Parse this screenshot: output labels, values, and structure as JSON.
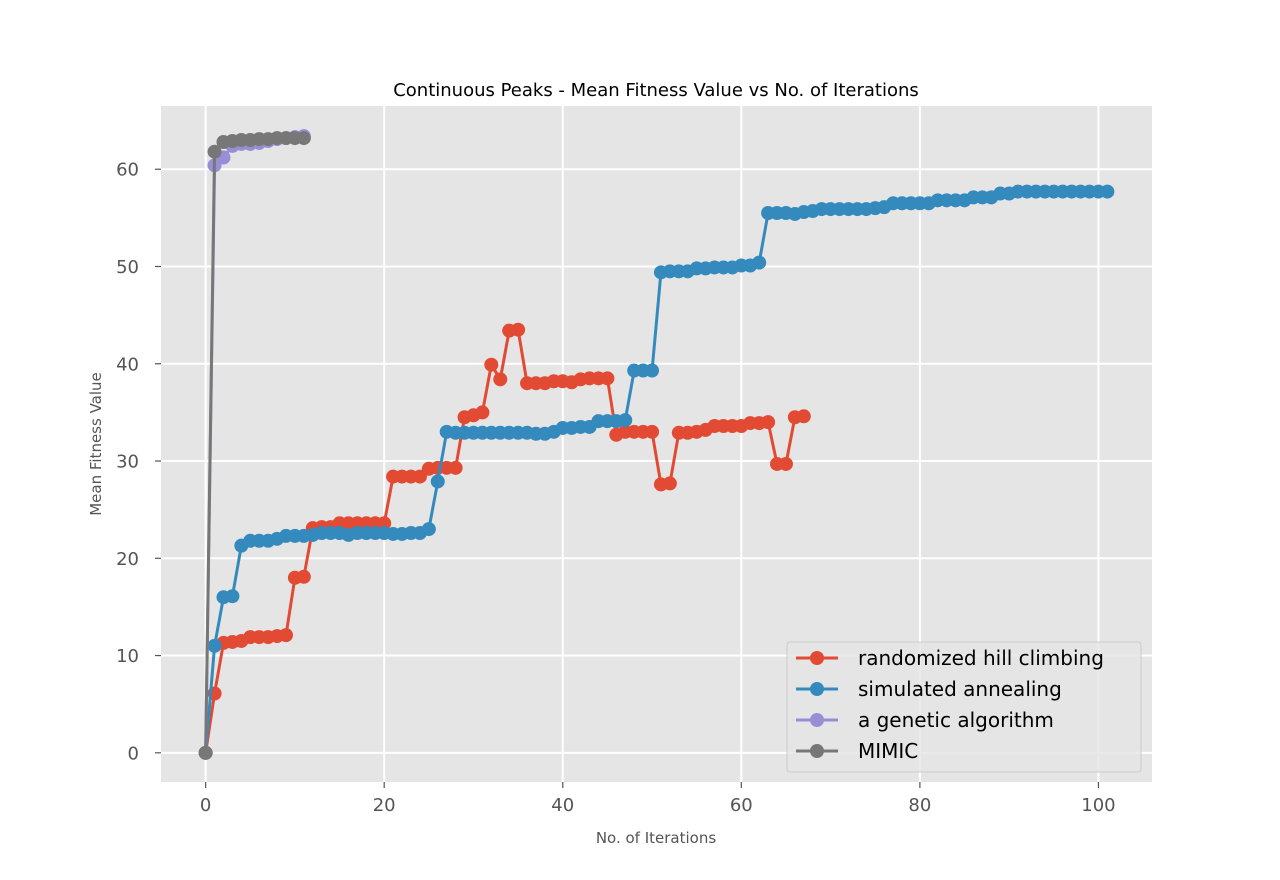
{
  "chart_data": {
    "type": "line",
    "title": "Continuous Peaks - Mean Fitness Value vs No. of Iterations",
    "xlabel": "No. of Iterations",
    "ylabel": "Mean Fitness Value",
    "xlim": [
      -5,
      106
    ],
    "ylim": [
      -3,
      66.5
    ],
    "xticks": [
      0,
      20,
      40,
      60,
      80,
      100
    ],
    "yticks": [
      0,
      10,
      20,
      30,
      40,
      50,
      60
    ],
    "grid": true,
    "legend_position": "lower-right",
    "background": "#e5e5e5",
    "series": [
      {
        "name": "randomized hill climbing",
        "color": "#e24a33",
        "x": [
          0,
          1,
          2,
          3,
          4,
          5,
          6,
          7,
          8,
          9,
          10,
          11,
          12,
          13,
          14,
          15,
          16,
          17,
          18,
          19,
          20,
          21,
          22,
          23,
          24,
          25,
          26,
          27,
          28,
          29,
          30,
          31,
          32,
          33,
          34,
          35,
          36,
          37,
          38,
          39,
          40,
          41,
          42,
          43,
          44,
          45,
          46,
          47,
          48,
          49,
          50,
          51,
          52,
          53,
          54,
          55,
          56,
          57,
          58,
          59,
          60,
          61,
          62,
          63,
          64,
          65,
          66,
          67
        ],
        "y": [
          0,
          6.1,
          11.3,
          11.4,
          11.5,
          11.9,
          11.9,
          11.9,
          12.0,
          12.1,
          18.0,
          18.1,
          23.1,
          23.2,
          23.2,
          23.6,
          23.6,
          23.6,
          23.6,
          23.6,
          23.6,
          28.4,
          28.4,
          28.4,
          28.4,
          29.2,
          29.3,
          29.3,
          29.3,
          34.5,
          34.7,
          35.0,
          39.9,
          38.4,
          43.4,
          43.5,
          38.0,
          38.0,
          38.0,
          38.2,
          38.2,
          38.1,
          38.4,
          38.5,
          38.5,
          38.5,
          32.7,
          33.0,
          33.0,
          33.0,
          33.0,
          27.6,
          27.7,
          32.9,
          32.9,
          33.0,
          33.2,
          33.6,
          33.6,
          33.6,
          33.6,
          33.9,
          33.9,
          34.0,
          29.7,
          29.7,
          34.5,
          34.6
        ]
      },
      {
        "name": "simulated annealing",
        "color": "#348abd",
        "x": [
          0,
          1,
          2,
          3,
          4,
          5,
          6,
          7,
          8,
          9,
          10,
          11,
          12,
          13,
          14,
          15,
          16,
          17,
          18,
          19,
          20,
          21,
          22,
          23,
          24,
          25,
          26,
          27,
          28,
          29,
          30,
          31,
          32,
          33,
          34,
          35,
          36,
          37,
          38,
          39,
          40,
          41,
          42,
          43,
          44,
          45,
          46,
          47,
          48,
          49,
          50,
          51,
          52,
          53,
          54,
          55,
          56,
          57,
          58,
          59,
          60,
          61,
          62,
          63,
          64,
          65,
          66,
          67,
          68,
          69,
          70,
          71,
          72,
          73,
          74,
          75,
          76,
          77,
          78,
          79,
          80,
          81,
          82,
          83,
          84,
          85,
          86,
          87,
          88,
          89,
          90,
          91,
          92,
          93,
          94,
          95,
          96,
          97,
          98,
          99,
          100,
          101
        ],
        "y": [
          0,
          11.0,
          16.0,
          16.1,
          21.3,
          21.8,
          21.8,
          21.8,
          22.0,
          22.3,
          22.3,
          22.3,
          22.4,
          22.6,
          22.6,
          22.6,
          22.4,
          22.6,
          22.6,
          22.6,
          22.6,
          22.5,
          22.5,
          22.6,
          22.6,
          23.0,
          27.9,
          33.0,
          32.9,
          32.9,
          32.9,
          32.9,
          32.9,
          32.9,
          32.9,
          32.9,
          32.9,
          32.8,
          32.8,
          33.0,
          33.4,
          33.4,
          33.5,
          33.5,
          34.1,
          34.1,
          34.1,
          34.2,
          39.3,
          39.3,
          39.3,
          49.4,
          49.5,
          49.5,
          49.5,
          49.8,
          49.8,
          49.9,
          49.9,
          49.9,
          50.1,
          50.1,
          50.4,
          55.5,
          55.5,
          55.5,
          55.4,
          55.6,
          55.7,
          55.9,
          55.9,
          55.9,
          55.9,
          55.9,
          55.9,
          56.0,
          56.1,
          56.5,
          56.5,
          56.5,
          56.5,
          56.5,
          56.8,
          56.8,
          56.8,
          56.8,
          57.1,
          57.1,
          57.1,
          57.5,
          57.5,
          57.7,
          57.7,
          57.7,
          57.7,
          57.7,
          57.7,
          57.7,
          57.7,
          57.7,
          57.7,
          57.7
        ]
      },
      {
        "name": "a genetic algorithm",
        "color": "#988ed5",
        "x": [
          0,
          1,
          2,
          3,
          4,
          5,
          6,
          7,
          8,
          9,
          10,
          11
        ],
        "y": [
          0,
          60.4,
          61.2,
          62.4,
          62.6,
          62.6,
          62.7,
          62.9,
          63.1,
          63.2,
          63.3,
          63.4
        ]
      },
      {
        "name": "MIMIC",
        "color": "#777777",
        "x": [
          0,
          1,
          2,
          3,
          4,
          5,
          6,
          7,
          8,
          9,
          10,
          11
        ],
        "y": [
          0,
          61.8,
          62.8,
          62.9,
          63.0,
          63.0,
          63.1,
          63.1,
          63.2,
          63.2,
          63.2,
          63.2
        ]
      }
    ]
  }
}
